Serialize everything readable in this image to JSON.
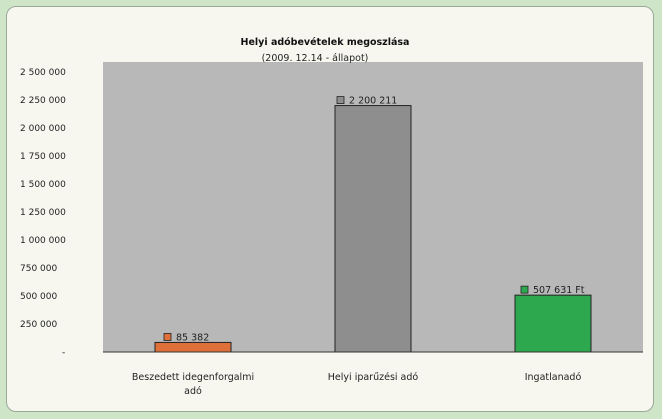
{
  "chart_data": {
    "type": "bar",
    "title": "Helyi adóbevételek megoszlása",
    "subtitle": "(2009. 12.14 - állapot)",
    "categories": [
      "Beszedett idegenforgalmi adó",
      "Helyi iparűzési adó",
      "Ingatlanadó"
    ],
    "values": [
      85382,
      2200211,
      507631
    ],
    "data_labels": [
      "85 382",
      "2 200 211",
      "507 631 Ft"
    ],
    "colors": [
      "#e0703a",
      "#8e8e8e",
      "#2ea84e"
    ],
    "ylim": [
      0,
      2500000
    ],
    "y_ticks": [
      {
        "value": 2500000,
        "label": "2 500 000"
      },
      {
        "value": 2250000,
        "label": "2 250 000"
      },
      {
        "value": 2000000,
        "label": "2 000 000"
      },
      {
        "value": 1750000,
        "label": "1 750 000"
      },
      {
        "value": 1500000,
        "label": "1 500 000"
      },
      {
        "value": 1250000,
        "label": "1 250 000"
      },
      {
        "value": 1000000,
        "label": "1 000 000"
      },
      {
        "value": 750000,
        "label": "750 000"
      },
      {
        "value": 500000,
        "label": "500 000"
      },
      {
        "value": 250000,
        "label": "250 000"
      },
      {
        "value": 0,
        "label": "-"
      }
    ],
    "grid": false,
    "plot_background": "#b8b8b8",
    "legend": "none"
  }
}
